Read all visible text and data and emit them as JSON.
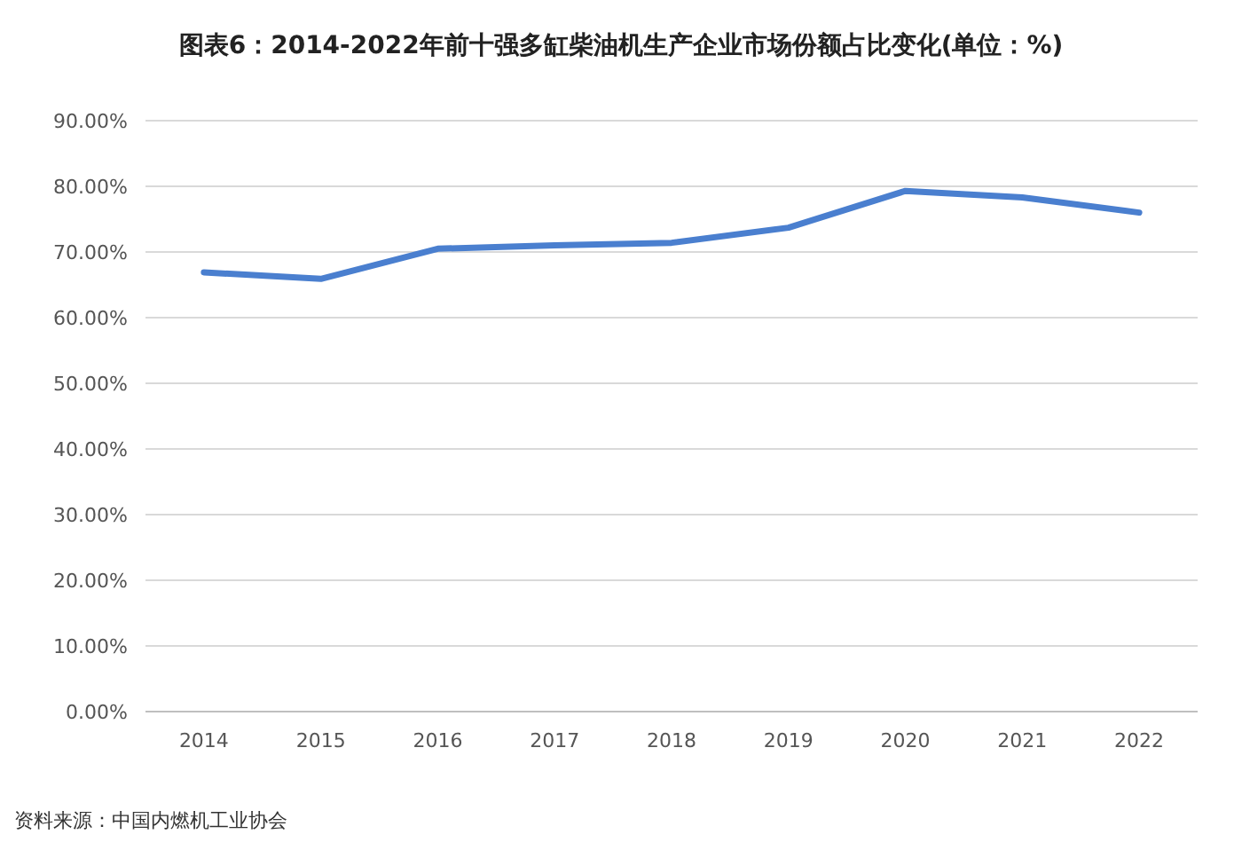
{
  "chart_data": {
    "type": "line",
    "title": "图表6：2014-2022年前十强多缸柴油机生产企业市场份额占比变化(单位：%)",
    "categories": [
      "2014",
      "2015",
      "2016",
      "2017",
      "2018",
      "2019",
      "2020",
      "2021",
      "2022"
    ],
    "series": [
      {
        "color": "#4a7fcf",
        "values": [
          66.9,
          65.9,
          70.5,
          71.0,
          71.4,
          73.7,
          79.3,
          78.3,
          76.0
        ]
      }
    ],
    "ylim": [
      0,
      90
    ],
    "yticks": [
      {
        "value": 0,
        "label": "0.00%"
      },
      {
        "value": 10,
        "label": "10.00%"
      },
      {
        "value": 20,
        "label": "20.00%"
      },
      {
        "value": 30,
        "label": "30.00%"
      },
      {
        "value": 40,
        "label": "40.00%"
      },
      {
        "value": 50,
        "label": "50.00%"
      },
      {
        "value": 60,
        "label": "60.00%"
      },
      {
        "value": 70,
        "label": "70.00%"
      },
      {
        "value": 80,
        "label": "80.00%"
      },
      {
        "value": 90,
        "label": "90.00%"
      }
    ],
    "grid": "y",
    "marker": "none",
    "line_style": "solid",
    "annotations": [
      "资料来源：中国内燃机工业协会"
    ]
  }
}
